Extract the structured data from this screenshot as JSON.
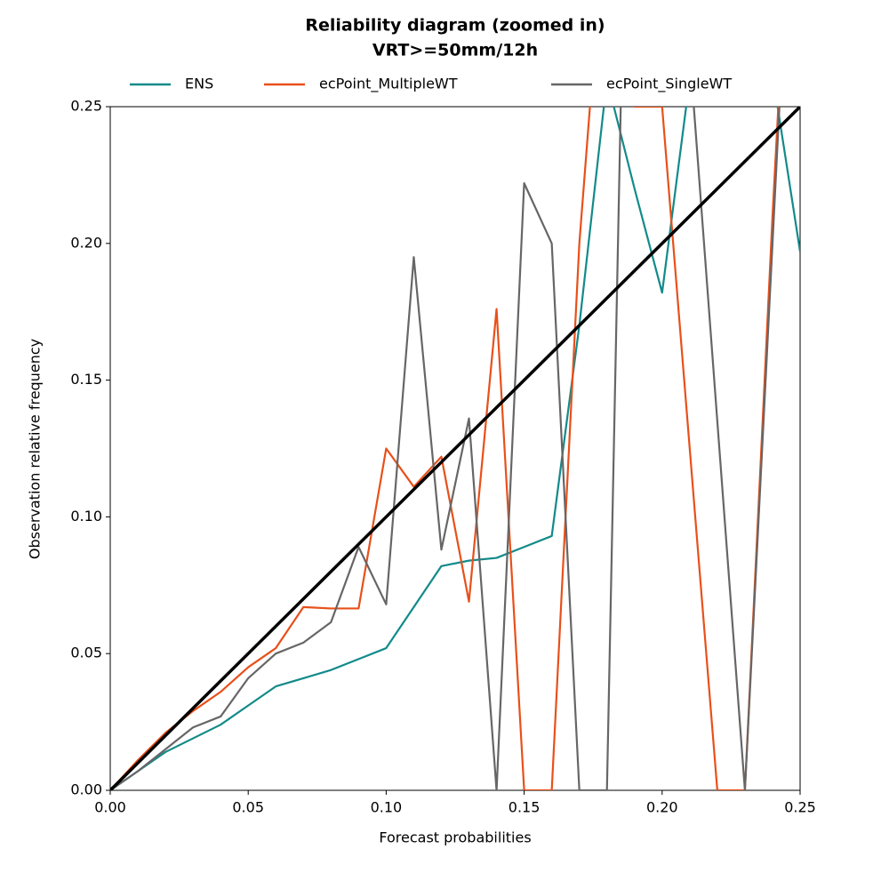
{
  "chart_data": {
    "type": "line",
    "title": "Reliability diagram (zoomed in)",
    "subtitle": "VRT>=50mm/12h",
    "x_label": "Forecast probabilities",
    "y_label": "Observation relative frequency",
    "legend": "top",
    "x": [
      0,
      0.01,
      0.02,
      0.03,
      0.04,
      0.05,
      0.06,
      0.07,
      0.08,
      0.09,
      0.1,
      0.11,
      0.12,
      0.13,
      0.14,
      0.15,
      0.16,
      0.17,
      0.18,
      0.19,
      0.2,
      0.21,
      0.22,
      0.23,
      0.24,
      0.25
    ],
    "series": [
      {
        "name": "ENS",
        "color": "#138a8a",
        "values": [
          0,
          0.007,
          0.014,
          0.019,
          0.024,
          0.031,
          0.038,
          0.041,
          0.044,
          0.048,
          0.052,
          0.067,
          0.082,
          0.084,
          0.085,
          0.089,
          0.093,
          0.17,
          0.26,
          0.22,
          0.182,
          0.26,
          0.3,
          0.3,
          0.262,
          0.197
        ]
      },
      {
        "name": "ecPoint_MultipleWT",
        "color": "#e8501a",
        "values": [
          0,
          0.011,
          0.021,
          0.029,
          0.036,
          0.045,
          0.052,
          0.067,
          0.0665,
          0.0665,
          0.125,
          0.111,
          0.122,
          0.069,
          0.176,
          0,
          0,
          0.2,
          0.33,
          0.25,
          0.25,
          0.125,
          0,
          0,
          0.21,
          0.4
        ]
      },
      {
        "name": "ecPoint_SingleWT",
        "color": "#666666",
        "values": [
          0,
          0.007,
          0.015,
          0.023,
          0.027,
          0.041,
          0.05,
          0.054,
          0.0615,
          0.089,
          0.068,
          0.195,
          0.088,
          0.136,
          0,
          0.222,
          0.2,
          0,
          0,
          0.5,
          0.3,
          0.27,
          0.135,
          0,
          0.2,
          0.4
        ]
      }
    ],
    "diagonal": {
      "color": "#000000",
      "x": [
        0,
        0.25
      ],
      "values": [
        0,
        0.25
      ]
    },
    "xlim": [
      0,
      0.25
    ],
    "ylim": [
      0,
      0.25
    ],
    "xticks": [
      {
        "value": 0,
        "label": "0.00"
      },
      {
        "value": 0.05,
        "label": "0.05"
      },
      {
        "value": 0.1,
        "label": "0.10"
      },
      {
        "value": 0.15,
        "label": "0.15"
      },
      {
        "value": 0.2,
        "label": "0.20"
      },
      {
        "value": 0.25,
        "label": "0.25"
      }
    ],
    "yticks": [
      {
        "value": 0,
        "label": "0.00"
      },
      {
        "value": 0.05,
        "label": "0.05"
      },
      {
        "value": 0.1,
        "label": "0.10"
      },
      {
        "value": 0.15,
        "label": "0.15"
      },
      {
        "value": 0.2,
        "label": "0.20"
      },
      {
        "value": 0.25,
        "label": "0.25"
      }
    ]
  }
}
